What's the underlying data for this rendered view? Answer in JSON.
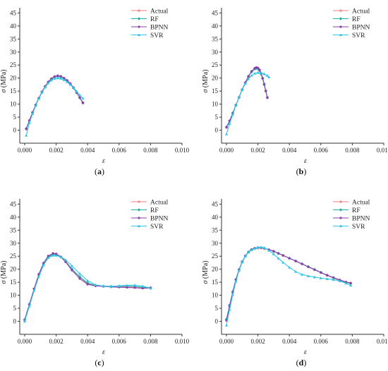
{
  "colors": {
    "Actual": "#f08080",
    "RF": "#20b2aa",
    "BPNN": "#8a3fa8",
    "SVR": "#33c6e6",
    "axis": "#333333"
  },
  "chart_data": [
    {
      "type": "line",
      "panel_label": "(a)",
      "xlabel": "ε",
      "ylabel": "σ (MPa)",
      "xlim": [
        0,
        0.01
      ],
      "ylim": [
        -5,
        47
      ],
      "xticks": [
        "0.000",
        "0.002",
        "0.004",
        "0.006",
        "0.008",
        "0.010"
      ],
      "yticks": [
        "0",
        "5",
        "10",
        "15",
        "20",
        "25",
        "30",
        "35",
        "40",
        "45"
      ],
      "legend": [
        "Actual",
        "RF",
        "BPNN",
        "SVR"
      ],
      "legend_position": "top-right",
      "series": [
        {
          "name": "Actual",
          "x": [
            0.0001,
            0.0003,
            0.0005,
            0.0007,
            0.0009,
            0.0011,
            0.0013,
            0.0015,
            0.0017,
            0.0019,
            0.0021,
            0.0023,
            0.0025,
            0.0027,
            0.0029,
            0.0031,
            0.0033,
            0.0035,
            0.0037
          ],
          "y": [
            0.3,
            3.8,
            6.9,
            9.7,
            12.3,
            14.8,
            16.9,
            18.6,
            19.8,
            20.6,
            20.9,
            20.6,
            20.0,
            19.1,
            17.9,
            16.3,
            14.5,
            12.5,
            10.5
          ]
        },
        {
          "name": "RF",
          "x": [
            0.0001,
            0.0003,
            0.0005,
            0.0007,
            0.0009,
            0.0011,
            0.0013,
            0.0015,
            0.0017,
            0.0019,
            0.0021,
            0.0023,
            0.0025,
            0.0027,
            0.0029,
            0.0031,
            0.0033,
            0.0035,
            0.0037
          ],
          "y": [
            0.6,
            3.6,
            6.7,
            9.6,
            12.2,
            14.6,
            16.7,
            18.4,
            19.6,
            20.4,
            20.6,
            20.4,
            19.8,
            18.9,
            17.7,
            16.2,
            14.4,
            12.4,
            10.6
          ]
        },
        {
          "name": "BPNN",
          "x": [
            0.0001,
            0.0003,
            0.0005,
            0.0007,
            0.0009,
            0.0011,
            0.0013,
            0.0015,
            0.0017,
            0.0019,
            0.0021,
            0.0023,
            0.0025,
            0.0027,
            0.0029,
            0.0031,
            0.0033,
            0.0035,
            0.0037
          ],
          "y": [
            0.5,
            3.7,
            6.8,
            9.7,
            12.3,
            14.7,
            16.8,
            18.5,
            19.8,
            20.6,
            20.9,
            20.7,
            20.0,
            19.1,
            17.9,
            16.4,
            14.5,
            12.5,
            10.4
          ]
        },
        {
          "name": "SVR",
          "x": [
            0.0001,
            0.0003,
            0.0005,
            0.0007,
            0.0009,
            0.0011,
            0.0013,
            0.0015,
            0.0017,
            0.0019,
            0.0021,
            0.0023,
            0.0025,
            0.0027,
            0.0029,
            0.0031,
            0.0033,
            0.0035,
            0.0037
          ],
          "y": [
            -2.0,
            2.8,
            6.3,
            9.4,
            12.1,
            14.5,
            16.5,
            18.1,
            19.2,
            19.8,
            20.0,
            19.8,
            19.3,
            18.5,
            17.5,
            16.3,
            14.9,
            13.5,
            12.2
          ]
        }
      ]
    },
    {
      "type": "line",
      "panel_label": "(b)",
      "xlabel": "ε",
      "ylabel": "σ (MPa)",
      "xlim": [
        0,
        0.01
      ],
      "ylim": [
        -5,
        47
      ],
      "xticks": [
        "0.000",
        "0.002",
        "0.004",
        "0.006",
        "0.008",
        "0.010"
      ],
      "yticks": [
        "0",
        "5",
        "10",
        "15",
        "20",
        "25",
        "30",
        "35",
        "40",
        "45"
      ],
      "legend": [
        "Actual",
        "RF",
        "BPNN",
        "SVR"
      ],
      "legend_position": "top-right",
      "series": [
        {
          "name": "Actual",
          "x": [
            0.0,
            0.0002,
            0.0004,
            0.0006,
            0.0008,
            0.001,
            0.0012,
            0.0014,
            0.0016,
            0.0018,
            0.0019,
            0.002,
            0.0021,
            0.0022,
            0.0023,
            0.0024,
            0.0025,
            0.0026
          ],
          "y": [
            1.0,
            3.5,
            6.5,
            9.6,
            12.6,
            15.6,
            18.3,
            20.7,
            22.6,
            23.7,
            24.0,
            23.8,
            23.1,
            21.8,
            19.9,
            17.6,
            15.0,
            12.5
          ]
        },
        {
          "name": "RF",
          "x": [
            0.0,
            0.0002,
            0.0004,
            0.0006,
            0.0008,
            0.001,
            0.0012,
            0.0014,
            0.0016,
            0.0018,
            0.0019,
            0.002,
            0.0021,
            0.0022,
            0.0023,
            0.0024,
            0.0025,
            0.0026
          ],
          "y": [
            1.2,
            3.6,
            6.6,
            9.6,
            12.6,
            15.5,
            18.2,
            20.6,
            22.4,
            23.5,
            23.8,
            23.6,
            22.9,
            21.6,
            19.8,
            17.5,
            15.0,
            12.6
          ]
        },
        {
          "name": "BPNN",
          "x": [
            0.0,
            0.0002,
            0.0004,
            0.0006,
            0.0008,
            0.001,
            0.0012,
            0.0014,
            0.0016,
            0.0018,
            0.0019,
            0.002,
            0.0021,
            0.0022,
            0.0023,
            0.0024,
            0.0025,
            0.0026
          ],
          "y": [
            1.1,
            3.5,
            6.5,
            9.6,
            12.6,
            15.6,
            18.3,
            20.7,
            22.6,
            23.8,
            24.1,
            23.9,
            23.2,
            21.9,
            20.0,
            17.7,
            15.1,
            12.4
          ]
        },
        {
          "name": "SVR",
          "x": [
            0.0,
            0.0002,
            0.0004,
            0.0006,
            0.0008,
            0.001,
            0.0012,
            0.0014,
            0.0016,
            0.0018,
            0.002,
            0.0022,
            0.0024,
            0.0026,
            0.0027
          ],
          "y": [
            -1.5,
            2.5,
            6.0,
            9.5,
            12.8,
            15.6,
            17.9,
            19.7,
            21.0,
            21.8,
            22.1,
            22.0,
            21.6,
            20.9,
            20.4
          ]
        }
      ]
    },
    {
      "type": "line",
      "panel_label": "(c)",
      "xlabel": "ε",
      "ylabel": "σ (MPa)",
      "xlim": [
        0,
        0.01
      ],
      "ylim": [
        -5,
        47
      ],
      "xticks": [
        "0.000",
        "0.002",
        "0.004",
        "0.006",
        "0.008",
        "0.010"
      ],
      "yticks": [
        "0",
        "5",
        "10",
        "15",
        "20",
        "25",
        "30",
        "35",
        "40",
        "45"
      ],
      "legend": [
        "Actual",
        "RF",
        "BPNN",
        "SVR"
      ],
      "legend_position": "top-right",
      "series": [
        {
          "name": "Actual",
          "x": [
            0.0,
            0.0003,
            0.0006,
            0.0009,
            0.0012,
            0.0015,
            0.0018,
            0.002,
            0.0023,
            0.0026,
            0.003,
            0.0035,
            0.004,
            0.0045,
            0.005,
            0.0055,
            0.006,
            0.0065,
            0.007,
            0.0075,
            0.008
          ],
          "y": [
            0.5,
            6.5,
            12.5,
            18.0,
            22.3,
            25.0,
            26.0,
            25.8,
            24.8,
            23.0,
            20.0,
            17.0,
            14.5,
            13.7,
            13.4,
            13.3,
            13.3,
            13.2,
            13.0,
            12.8,
            12.9
          ]
        },
        {
          "name": "RF",
          "x": [
            0.0,
            0.0003,
            0.0006,
            0.0009,
            0.0012,
            0.0015,
            0.0018,
            0.002,
            0.0023,
            0.0026,
            0.003,
            0.0035,
            0.004,
            0.0045,
            0.005,
            0.0055,
            0.006,
            0.0065,
            0.007,
            0.0075,
            0.008
          ],
          "y": [
            0.7,
            6.6,
            12.4,
            17.8,
            22.0,
            24.7,
            25.7,
            25.6,
            24.7,
            23.0,
            20.1,
            17.1,
            14.7,
            13.8,
            13.5,
            13.4,
            13.5,
            13.5,
            13.4,
            13.1,
            12.9
          ]
        },
        {
          "name": "BPNN",
          "x": [
            0.0,
            0.0003,
            0.0006,
            0.0009,
            0.0012,
            0.0015,
            0.0018,
            0.002,
            0.0023,
            0.0026,
            0.003,
            0.0035,
            0.004,
            0.0045,
            0.005,
            0.0055,
            0.006,
            0.0065,
            0.007,
            0.0075,
            0.008
          ],
          "y": [
            0.4,
            6.4,
            12.5,
            18.1,
            22.4,
            25.1,
            26.1,
            25.9,
            24.7,
            22.8,
            19.6,
            16.4,
            14.2,
            13.6,
            13.4,
            13.2,
            13.1,
            13.0,
            12.9,
            12.7,
            12.8
          ]
        },
        {
          "name": "SVR",
          "x": [
            0.0,
            0.0003,
            0.0006,
            0.0009,
            0.0012,
            0.0015,
            0.0018,
            0.002,
            0.0023,
            0.0026,
            0.003,
            0.0035,
            0.004,
            0.0045,
            0.005,
            0.0055,
            0.006,
            0.0065,
            0.007,
            0.0075,
            0.008
          ],
          "y": [
            0.0,
            5.8,
            11.8,
            17.2,
            21.6,
            24.4,
            25.3,
            25.3,
            24.7,
            23.6,
            21.3,
            18.3,
            15.6,
            14.0,
            13.5,
            13.4,
            13.6,
            13.8,
            13.9,
            13.5,
            12.7
          ]
        }
      ]
    },
    {
      "type": "line",
      "panel_label": "(d)",
      "xlabel": "ε",
      "ylabel": "σ (MPa)",
      "xlim": [
        0,
        0.01
      ],
      "ylim": [
        -5,
        47
      ],
      "xticks": [
        "0.000",
        "0.002",
        "0.004",
        "0.006",
        "0.008",
        "0.010"
      ],
      "yticks": [
        "0",
        "5",
        "10",
        "15",
        "20",
        "25",
        "30",
        "35",
        "40",
        "45"
      ],
      "legend": [
        "Actual",
        "RF",
        "BPNN",
        "SVR"
      ],
      "legend_position": "top-right",
      "series": [
        {
          "name": "Actual",
          "x": [
            0.0,
            0.0002,
            0.0004,
            0.0006,
            0.0008,
            0.001,
            0.0012,
            0.0014,
            0.0016,
            0.0018,
            0.002,
            0.0022,
            0.0024,
            0.0027,
            0.003,
            0.0033,
            0.0036,
            0.004,
            0.0044,
            0.0048,
            0.0052,
            0.0056,
            0.006,
            0.0064,
            0.0068,
            0.0072,
            0.0076,
            0.0079
          ],
          "y": [
            0.5,
            6.0,
            11.2,
            16.0,
            19.8,
            22.8,
            25.0,
            26.5,
            27.4,
            27.9,
            28.1,
            28.1,
            27.9,
            27.4,
            26.8,
            26.1,
            25.3,
            24.2,
            23.2,
            22.1,
            20.9,
            19.8,
            18.7,
            17.6,
            16.6,
            15.7,
            14.9,
            14.4
          ]
        },
        {
          "name": "RF",
          "x": [
            0.0,
            0.0002,
            0.0004,
            0.0006,
            0.0008,
            0.001,
            0.0012,
            0.0014,
            0.0016,
            0.0018,
            0.002,
            0.0022,
            0.0024,
            0.0027,
            0.003,
            0.0033,
            0.0036,
            0.004,
            0.0044,
            0.0048,
            0.0052,
            0.0056,
            0.006,
            0.0064,
            0.0068,
            0.0072,
            0.0076,
            0.0079
          ],
          "y": [
            0.8,
            6.2,
            11.4,
            16.1,
            19.9,
            22.9,
            25.1,
            26.6,
            27.5,
            28.0,
            28.3,
            28.3,
            28.1,
            27.5,
            26.9,
            26.1,
            25.3,
            24.2,
            23.2,
            22.1,
            21.0,
            19.9,
            18.8,
            17.7,
            16.7,
            15.8,
            15.0,
            14.6
          ]
        },
        {
          "name": "BPNN",
          "x": [
            0.0,
            0.0002,
            0.0004,
            0.0006,
            0.0008,
            0.001,
            0.0012,
            0.0014,
            0.0016,
            0.0018,
            0.002,
            0.0022,
            0.0024,
            0.0027,
            0.003,
            0.0033,
            0.0036,
            0.004,
            0.0044,
            0.0048,
            0.0052,
            0.0056,
            0.006,
            0.0064,
            0.0068,
            0.0072,
            0.0076,
            0.0079
          ],
          "y": [
            0.3,
            5.8,
            11.1,
            15.9,
            19.8,
            22.8,
            25.1,
            26.6,
            27.6,
            28.1,
            28.3,
            28.3,
            28.0,
            27.5,
            26.9,
            26.1,
            25.3,
            24.2,
            23.1,
            22.0,
            20.9,
            19.8,
            18.7,
            17.7,
            16.8,
            15.9,
            15.1,
            14.7
          ]
        },
        {
          "name": "SVR",
          "x": [
            0.0,
            0.0002,
            0.0004,
            0.0006,
            0.0008,
            0.001,
            0.0012,
            0.0014,
            0.0016,
            0.0018,
            0.002,
            0.0022,
            0.0024,
            0.0027,
            0.003,
            0.0033,
            0.0036,
            0.004,
            0.0044,
            0.0048,
            0.0052,
            0.0056,
            0.006,
            0.0064,
            0.0068,
            0.0072,
            0.0076,
            0.0079
          ],
          "y": [
            -1.5,
            4.5,
            10.2,
            15.3,
            19.5,
            22.7,
            25.0,
            26.5,
            27.4,
            28.0,
            28.4,
            28.5,
            28.2,
            27.2,
            25.8,
            24.2,
            22.6,
            20.7,
            19.1,
            18.0,
            17.4,
            17.0,
            16.6,
            16.3,
            16.0,
            15.5,
            14.6,
            13.8
          ]
        }
      ]
    }
  ]
}
